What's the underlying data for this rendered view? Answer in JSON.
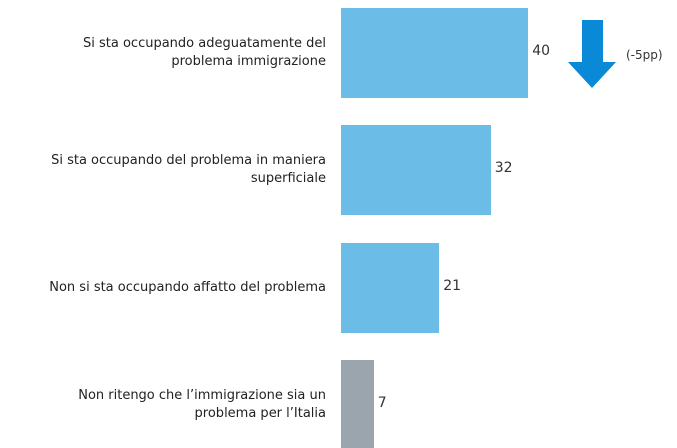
{
  "chart_data": {
    "type": "barh",
    "categories": [
      "Si sta occupando adeguatamente del problema immigrazione",
      "Si sta occupando del problema in maniera superficiale",
      "Non si sta occupando affatto del problema",
      "Non ritengo che l’immigrazione sia un problema per l’Italia"
    ],
    "values": [
      40,
      32,
      21,
      7
    ],
    "colors": [
      "#6bbde8",
      "#6bbde8",
      "#6bbde8",
      "#9aa5ae"
    ],
    "annotation": "(-5pp)"
  }
}
